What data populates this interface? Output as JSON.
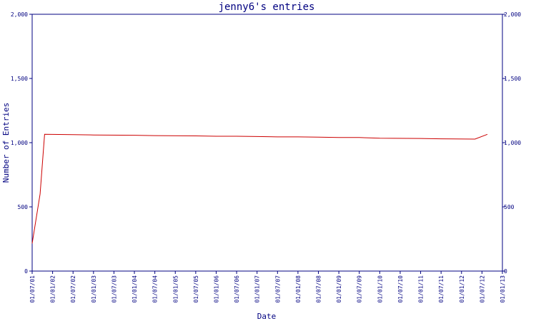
{
  "chart_data": {
    "type": "line",
    "title": "jenny6's entries",
    "xlabel": "Date",
    "ylabel": "Number of Entries",
    "ylim": [
      0,
      2000
    ],
    "yticks": [
      "0",
      "500",
      "1,000",
      "1,500",
      "2,000"
    ],
    "ytick_values": [
      0,
      500,
      1000,
      1500,
      2000
    ],
    "xticks": [
      "01/07/01",
      "01/01/02",
      "01/07/02",
      "01/01/03",
      "01/07/03",
      "01/01/04",
      "01/07/04",
      "01/01/05",
      "01/07/05",
      "01/01/06",
      "01/07/06",
      "01/01/07",
      "01/07/07",
      "01/01/08",
      "01/07/08",
      "01/01/09",
      "01/07/09",
      "01/01/10",
      "01/07/10",
      "01/01/11",
      "01/07/11",
      "01/01/12",
      "01/07/12",
      "01/01/13"
    ],
    "xlim": [
      "2001-07-01",
      "2013-01-01"
    ],
    "grid": false,
    "colors": {
      "axis": "#000080",
      "series": "#cc0000"
    },
    "series": [
      {
        "x": [
          "2001-07-01",
          "2001-09-10",
          "2001-10-20",
          "2002-07-01",
          "2003-01-01",
          "2004-01-01",
          "2004-07-01",
          "2005-07-01",
          "2006-01-01",
          "2006-07-01",
          "2007-01-01",
          "2007-07-01",
          "2008-01-01",
          "2008-07-01",
          "2009-01-01",
          "2009-07-01",
          "2010-01-01",
          "2011-01-01",
          "2011-07-01",
          "2012-05-01",
          "2012-08-20"
        ],
        "y": [
          215,
          600,
          1065,
          1063,
          1060,
          1058,
          1055,
          1053,
          1050,
          1050,
          1048,
          1045,
          1045,
          1043,
          1040,
          1040,
          1035,
          1033,
          1030,
          1028,
          1065
        ]
      }
    ]
  }
}
